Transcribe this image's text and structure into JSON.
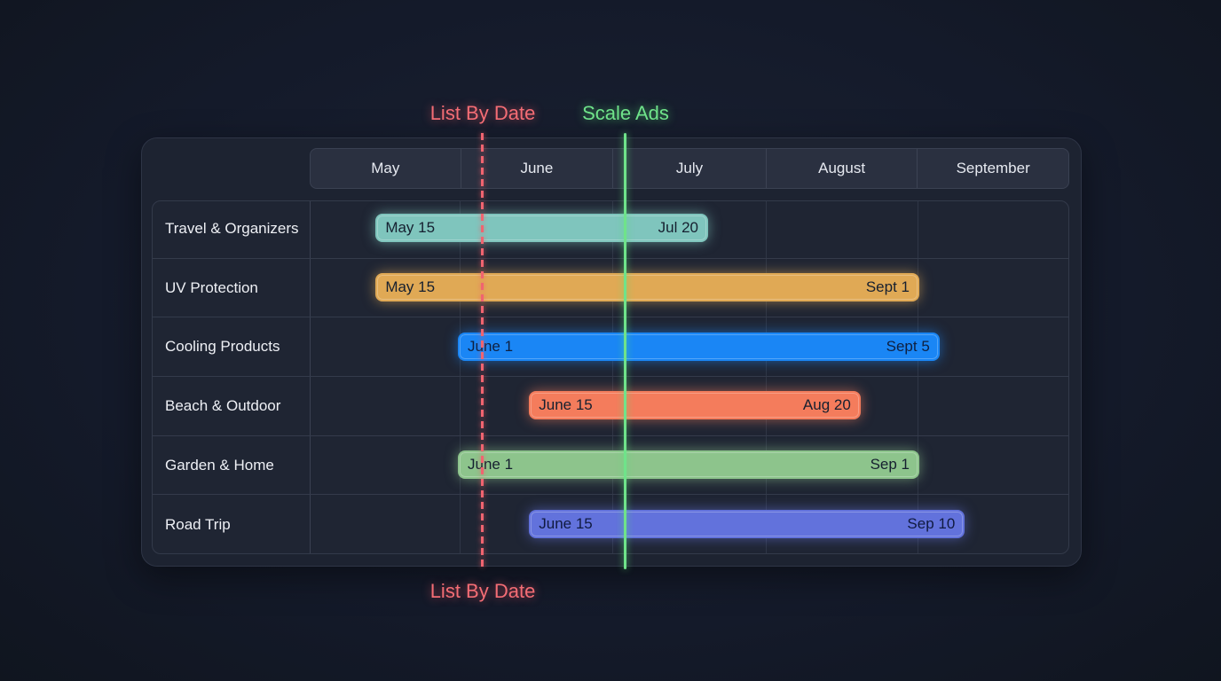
{
  "chart_data": {
    "type": "gantt",
    "title": "",
    "months": [
      "May",
      "June",
      "July",
      "August",
      "September"
    ],
    "rows": [
      {
        "label": "Travel & Organizers",
        "start_label": "May 15",
        "end_label": "Jul 20",
        "start": "May 15",
        "end": "Jul 20",
        "color": "#7fc5bd"
      },
      {
        "label": "UV Protection",
        "start_label": "May 15",
        "end_label": "Sept 1",
        "start": "May 15",
        "end": "Sep 1",
        "color": "#e0a955"
      },
      {
        "label": "Cooling Products",
        "start_label": "June 1",
        "end_label": "Sept 5",
        "start": "Jun 1",
        "end": "Sep 5",
        "color": "#1a86f5"
      },
      {
        "label": "Beach & Outdoor",
        "start_label": "June 15",
        "end_label": "Aug 20",
        "start": "Jun 15",
        "end": "Aug 20",
        "color": "#f47c5c"
      },
      {
        "label": "Garden & Home",
        "start_label": "June 1",
        "end_label": "Sep 1",
        "start": "Jun 1",
        "end": "Sep 1",
        "color": "#8dc48c"
      },
      {
        "label": "Road Trip",
        "start_label": "June 15",
        "end_label": "Sep 10",
        "start": "Jun 15",
        "end": "Sep 10",
        "color": "#6272dc"
      }
    ],
    "markers": [
      {
        "label": "List By Date",
        "color": "#f46d75",
        "style": "dashed",
        "label_positions": [
          "top",
          "bottom"
        ]
      },
      {
        "label": "Scale Ads",
        "color": "#6fe38a",
        "style": "solid",
        "label_positions": [
          "top"
        ]
      }
    ]
  }
}
